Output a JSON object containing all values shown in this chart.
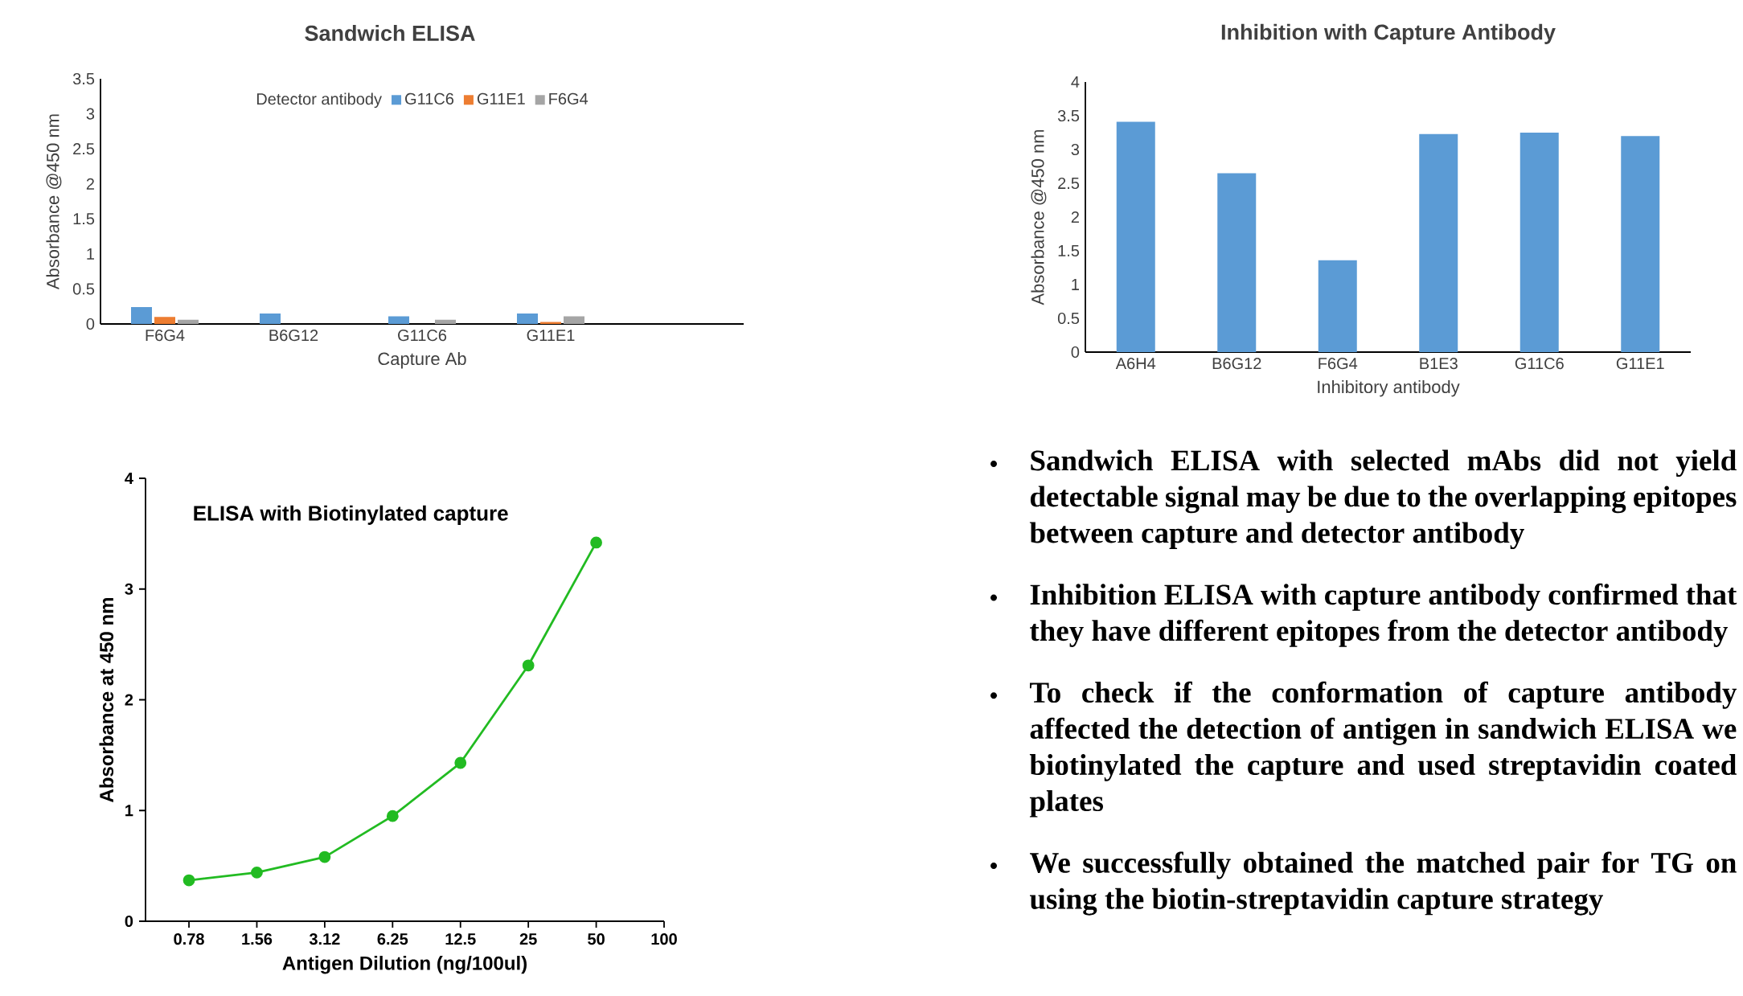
{
  "chart_data": [
    {
      "type": "bar",
      "title": "Sandwich ELISA",
      "xlabel": "Capture Ab",
      "ylabel": "Absorbance @450 nm",
      "legend_title": "Detector antibody",
      "legend": "top",
      "categories": [
        "F6G4",
        "B6G12",
        "G11C6",
        "G11E1",
        null
      ],
      "ylim": [
        0,
        3.5
      ],
      "yticks": [
        0,
        0.5,
        1,
        1.5,
        2,
        2.5,
        3,
        3.5
      ],
      "series": [
        {
          "name": "G11C6",
          "color": "#5b9bd5",
          "values": [
            0.24,
            0.15,
            0.11,
            0.15,
            null
          ]
        },
        {
          "name": "G11E1",
          "color": "#ed7d31",
          "values": [
            0.1,
            null,
            null,
            0.03,
            null
          ]
        },
        {
          "name": "F6G4",
          "color": "#a5a5a5",
          "values": [
            0.06,
            null,
            0.06,
            0.11,
            null
          ]
        }
      ]
    },
    {
      "type": "bar",
      "title": "Inhibition with Capture Antibody",
      "xlabel": "Inhibitory antibody",
      "ylabel": "Absorbance @450 nm",
      "categories": [
        "A6H4",
        "B6G12",
        "F6G4",
        "B1E3",
        "G11C6",
        "G11E1"
      ],
      "values": [
        3.41,
        2.65,
        1.36,
        3.23,
        3.25,
        3.2
      ],
      "color": "#5b9bd5",
      "ylim": [
        0,
        4
      ],
      "yticks": [
        0,
        0.5,
        1,
        1.5,
        2,
        2.5,
        3,
        3.5,
        4
      ]
    },
    {
      "type": "line",
      "title": "ELISA with Biotinylated capture",
      "xlabel": "Antigen Dilution (ng/100ul)",
      "ylabel": "Absorbance at 450 nm",
      "categories": [
        "0.78",
        "1.56",
        "3.12",
        "6.25",
        "12.5",
        "25",
        "50",
        "100"
      ],
      "values": [
        0.37,
        0.44,
        0.58,
        0.95,
        1.43,
        2.31,
        3.42,
        null
      ],
      "color": "#22bb22",
      "marker": "circle",
      "line_style": "solid",
      "ylim": [
        0,
        4
      ],
      "yticks": [
        0,
        1,
        2,
        3,
        4
      ]
    },
    {
      "type": "other",
      "annotations": [
        "Sandwich ELISA with selected mAbs did not yield detectable signal may be due to the overlapping epitopes between capture and detector antibody",
        "Inhibition ELISA with capture antibody confirmed that they have different epitopes from the detector antibody",
        "To check if the conformation of capture antibody affected the detection of antigen in sandwich ELISA we biotinylated the capture and used streptavidin coated plates",
        "We successfully obtained the matched pair for TG on using the biotin-streptavidin capture strategy"
      ]
    }
  ]
}
